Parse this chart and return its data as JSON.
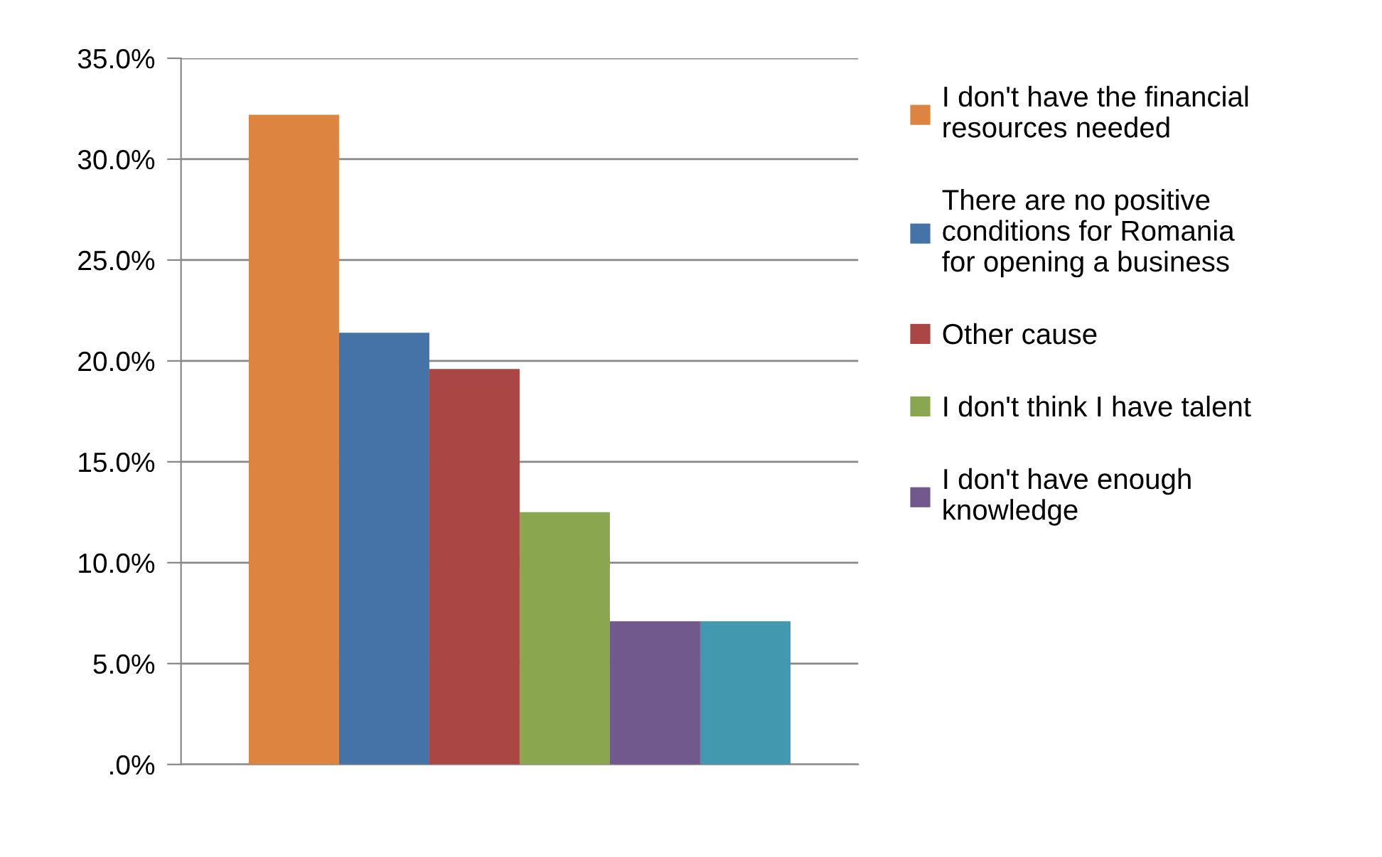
{
  "chart_data": {
    "type": "bar",
    "categories": [
      null
    ],
    "series": [
      {
        "name": "I don't have the financial\nresources needed",
        "color": "#dd8540",
        "values": [
          32.2
        ]
      },
      {
        "name": "There are no positive\nconditions for Romania\nfor opening a business",
        "color": "#4573a7",
        "values": [
          21.4
        ]
      },
      {
        "name": "Other cause",
        "color": "#aa4644",
        "values": [
          19.6
        ]
      },
      {
        "name": "I don't think I have talent",
        "color": "#8aa64e",
        "values": [
          12.5
        ]
      },
      {
        "name": "I don't have enough\nknowledge",
        "color": "#71598e",
        "values": [
          7.1
        ]
      },
      {
        "color": "#4198af",
        "values": [
          7.1
        ]
      }
    ],
    "ylim": [
      0,
      35
    ],
    "yticks": [
      {
        "value": 0,
        "label": ".0%"
      },
      {
        "value": 5,
        "label": "5.0%"
      },
      {
        "value": 10,
        "label": "10.0%"
      },
      {
        "value": 15,
        "label": "15.0%"
      },
      {
        "value": 20,
        "label": "20.0%"
      },
      {
        "value": 25,
        "label": "25.0%"
      },
      {
        "value": 30,
        "label": "30.0%"
      },
      {
        "value": 35,
        "label": "35.0%"
      }
    ],
    "grid": "y",
    "legend": "right"
  }
}
